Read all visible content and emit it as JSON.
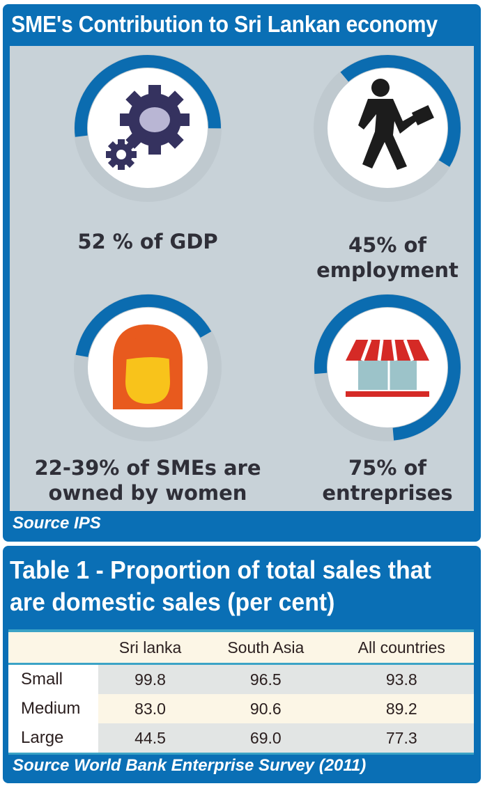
{
  "infographic": {
    "title": "SME's Contribution to Sri Lankan economy",
    "source": "Source IPS",
    "stats": [
      {
        "icon": "gear-icon",
        "caption_line1": "52 % of GDP",
        "caption_line2": "",
        "percent": 52
      },
      {
        "icon": "businessman-icon",
        "caption_line1": "45% of",
        "caption_line2": "employment",
        "percent": 45
      },
      {
        "icon": "woman-icon",
        "caption_line1": "22-39% of SMEs are",
        "caption_line2": "owned by women",
        "percent": 39
      },
      {
        "icon": "storefront-icon",
        "caption_line1": "75% of",
        "caption_line2": "entreprises",
        "percent": 75
      }
    ],
    "colors": {
      "frame": "#0a6fb5",
      "panel": "#c8d2d8",
      "arc": "#0b6cb0"
    }
  },
  "table": {
    "title_line1": "Table 1 - Proportion of total sales that",
    "title_line2": "are domestic sales (per cent)",
    "columns": [
      "",
      "Sri lanka",
      "South Asia",
      "All countries"
    ],
    "rows": [
      {
        "label": "Small",
        "values": [
          "99.8",
          "96.5",
          "93.8"
        ]
      },
      {
        "label": "Medium",
        "values": [
          "83.0",
          "90.6",
          "89.2"
        ]
      },
      {
        "label": "Large",
        "values": [
          "44.5",
          "69.0",
          "77.3"
        ]
      }
    ],
    "source": "Source World Bank Enterprise Survey (2011)"
  }
}
